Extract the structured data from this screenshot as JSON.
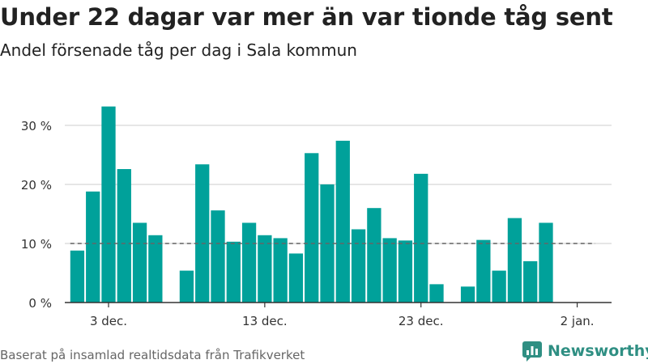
{
  "header": {
    "title": "Under 22 dagar var mer än var tionde tåg sent",
    "subtitle": "Andel försenade tåg per dag i Sala kommun"
  },
  "footer": {
    "source": "Baserat på insamlad realtidsdata från Trafikverket",
    "brand": "Newsworthy"
  },
  "colors": {
    "bar": "#00a19a",
    "reference_line": "#666666",
    "grid": "#dddddd",
    "axis": "#333333",
    "brand": "#2f8f83"
  },
  "chart_data": {
    "type": "bar",
    "title": "Under 22 dagar var mer än var tionde tåg sent",
    "subtitle": "Andel försenade tåg per dag i Sala kommun",
    "xlabel": "",
    "ylabel": "",
    "ylim": [
      0,
      35
    ],
    "yticks": [
      0,
      10,
      20,
      30
    ],
    "ytick_labels": [
      "0 %",
      "10 %",
      "20 %",
      "30 %"
    ],
    "xtick_labels": [
      "3 dec.",
      "13 dec.",
      "23 dec.",
      "2 jan."
    ],
    "xtick_days": [
      3,
      13,
      23,
      33
    ],
    "x_range_days": [
      0.2,
      35.2
    ],
    "reference_line": 10,
    "grid": true,
    "legend": "none",
    "bars": [
      {
        "day": 1,
        "value": 8.8
      },
      {
        "day": 2,
        "value": 18.8
      },
      {
        "day": 3,
        "value": 33.2
      },
      {
        "day": 4,
        "value": 22.6
      },
      {
        "day": 5,
        "value": 13.5
      },
      {
        "day": 6,
        "value": 11.4
      },
      {
        "day": 8,
        "value": 5.4
      },
      {
        "day": 9,
        "value": 23.4
      },
      {
        "day": 10,
        "value": 15.6
      },
      {
        "day": 11,
        "value": 10.3
      },
      {
        "day": 12,
        "value": 13.5
      },
      {
        "day": 13,
        "value": 11.4
      },
      {
        "day": 14,
        "value": 10.9
      },
      {
        "day": 15,
        "value": 8.3
      },
      {
        "day": 16,
        "value": 25.3
      },
      {
        "day": 17,
        "value": 20.0
      },
      {
        "day": 18,
        "value": 27.4
      },
      {
        "day": 19,
        "value": 12.4
      },
      {
        "day": 20,
        "value": 16.0
      },
      {
        "day": 21,
        "value": 10.9
      },
      {
        "day": 22,
        "value": 10.5
      },
      {
        "day": 23,
        "value": 21.8
      },
      {
        "day": 24,
        "value": 3.1
      },
      {
        "day": 26,
        "value": 2.7
      },
      {
        "day": 27,
        "value": 10.6
      },
      {
        "day": 28,
        "value": 5.4
      },
      {
        "day": 29,
        "value": 14.3
      },
      {
        "day": 30,
        "value": 7.0
      },
      {
        "day": 31,
        "value": 13.5
      }
    ]
  }
}
